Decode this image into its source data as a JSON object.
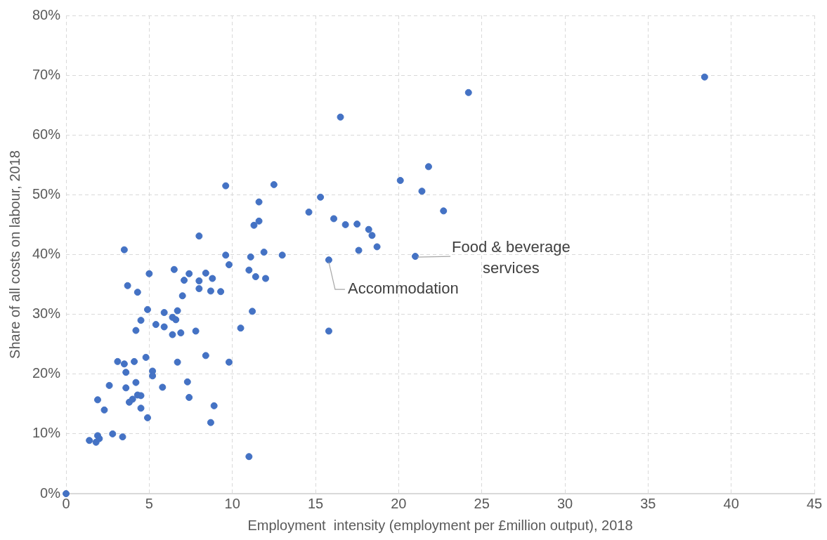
{
  "chart_data": {
    "type": "scatter",
    "xlabel": "Employment  intensity (employment per £million output), 2018",
    "ylabel": "Share of all costs on labour, 2018",
    "x": [
      0,
      1.4,
      1.8,
      1.9,
      2.0,
      1.9,
      2.3,
      2.6,
      2.8,
      3.1,
      3.4,
      3.5,
      3.5,
      3.6,
      3.6,
      3.7,
      3.8,
      4.0,
      4.1,
      4.2,
      4.2,
      4.3,
      4.3,
      4.5,
      4.5,
      4.5,
      4.8,
      4.9,
      4.9,
      5.0,
      5.2,
      5.2,
      5.4,
      5.8,
      5.9,
      5.9,
      6.4,
      6.4,
      6.6,
      6.5,
      6.7,
      6.7,
      6.9,
      7.0,
      7.1,
      7.3,
      7.4,
      7.4,
      7.8,
      8.0,
      8.0,
      8.0,
      8.4,
      8.4,
      8.7,
      8.7,
      8.8,
      8.9,
      9.3,
      9.6,
      9.6,
      9.8,
      9.8,
      10.5,
      11.0,
      11.0,
      11.1,
      11.2,
      11.3,
      11.6,
      11.6,
      11.4,
      11.9,
      12.0,
      12.5,
      13.0,
      14.6,
      15.3,
      15.8,
      15.8,
      16.1,
      16.5,
      16.8,
      17.5,
      17.6,
      18.2,
      18.4,
      18.7,
      20.1,
      21.0,
      21.4,
      21.8,
      22.7,
      24.2,
      38.4
    ],
    "values": [
      0,
      8.9,
      8.6,
      9.7,
      9.2,
      15.7,
      14.0,
      18.1,
      10.0,
      22.1,
      9.5,
      40.8,
      21.7,
      20.3,
      17.7,
      34.8,
      15.3,
      15.8,
      22.1,
      27.3,
      18.6,
      33.7,
      16.5,
      16.4,
      14.3,
      29.0,
      22.8,
      30.8,
      12.7,
      36.8,
      20.5,
      19.7,
      28.3,
      17.8,
      30.3,
      27.9,
      26.6,
      29.5,
      29.1,
      37.5,
      30.6,
      22.0,
      26.9,
      33.1,
      35.7,
      18.7,
      36.8,
      16.1,
      27.2,
      34.3,
      43.1,
      35.6,
      36.9,
      23.1,
      33.9,
      11.9,
      36.0,
      14.7,
      33.8,
      51.5,
      39.9,
      38.3,
      22.0,
      27.7,
      37.4,
      6.2,
      39.6,
      30.5,
      44.9,
      45.6,
      48.8,
      36.3,
      40.4,
      36.0,
      51.7,
      39.9,
      47.1,
      49.6,
      39.1,
      27.2,
      46.0,
      63.0,
      45.0,
      45.1,
      40.7,
      44.2,
      43.2,
      41.3,
      52.4,
      39.7,
      50.6,
      54.7,
      47.3,
      67.1,
      69.7
    ],
    "color": "#4472c4",
    "marker": "circle",
    "xlim": [
      0,
      45
    ],
    "xticks": [
      0,
      5,
      10,
      15,
      20,
      25,
      30,
      35,
      40,
      45
    ],
    "ylim": [
      0,
      80
    ],
    "yticks": [
      {
        "value": 0,
        "label": "0%"
      },
      {
        "value": 10,
        "label": "10%"
      },
      {
        "value": 20,
        "label": "20%"
      },
      {
        "value": 30,
        "label": "30%"
      },
      {
        "value": 40,
        "label": "40%"
      },
      {
        "value": 50,
        "label": "50%"
      },
      {
        "value": 60,
        "label": "60%"
      },
      {
        "value": 70,
        "label": "70%"
      },
      {
        "value": 80,
        "label": "80%"
      }
    ],
    "grid": true,
    "legend": false,
    "annotations": [
      {
        "text": "Food & beverage services",
        "x": 21.0,
        "y": 39.7
      },
      {
        "text": "Accommodation",
        "x": 15.8,
        "y": 39.1
      }
    ]
  }
}
